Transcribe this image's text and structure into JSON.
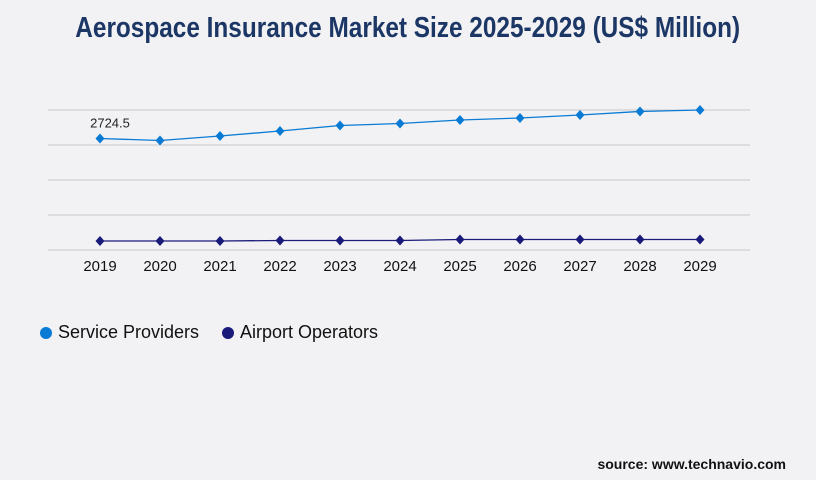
{
  "title": "Aerospace Insurance Market Size 2025-2029 (US$ Million)",
  "source": "source: www.technavio.com",
  "chart_data": {
    "type": "line",
    "title": "Aerospace Insurance Market Size 2025-2029 (US$ Million)",
    "x": [
      "2019",
      "2020",
      "2021",
      "2022",
      "2023",
      "2024",
      "2025",
      "2026",
      "2027",
      "2028",
      "2029"
    ],
    "ylim": [
      0,
      3420
    ],
    "grid": true,
    "legend": "bottom-left",
    "series": [
      {
        "name": "Service Providers",
        "color": "#0a7bd4",
        "values": [
          2724.5,
          2675,
          2785,
          2907,
          3041,
          3090,
          3176,
          3225,
          3298,
          3384,
          3420
        ]
      },
      {
        "name": "Airport Operators",
        "color": "#1a1a7a",
        "values": [
          220,
          220,
          220,
          232,
          232,
          232,
          257,
          257,
          257,
          257,
          257
        ]
      }
    ],
    "data_labels": [
      {
        "series": 0,
        "index": 0,
        "text": "2724.5"
      }
    ]
  }
}
